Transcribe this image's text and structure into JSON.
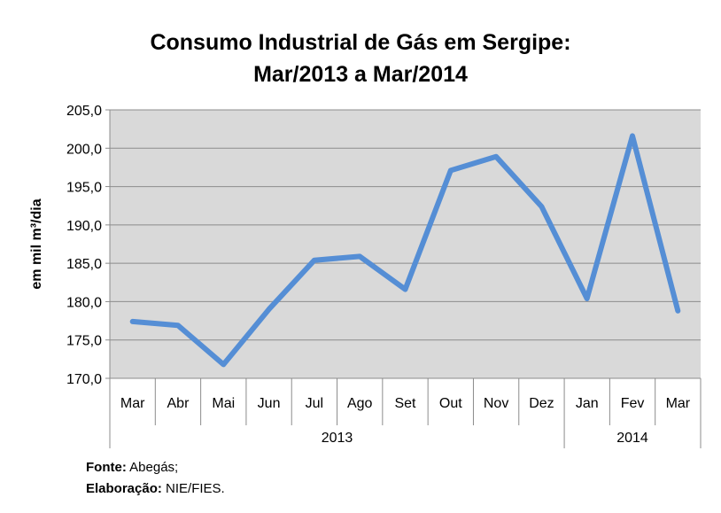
{
  "title_line1": "Consumo Industrial de Gás em Sergipe:",
  "title_line2": "Mar/2013 a Mar/2014",
  "chart_data": {
    "type": "line",
    "title": "Consumo Industrial de Gás em Sergipe: Mar/2013 a Mar/2014",
    "ylabel": "em mil m³/dia",
    "xlabel": "",
    "categories": [
      "Mar",
      "Abr",
      "Mai",
      "Jun",
      "Jul",
      "Ago",
      "Set",
      "Out",
      "Nov",
      "Dez",
      "Jan",
      "Fev",
      "Mar"
    ],
    "category_groups": [
      {
        "label": "2013",
        "count": 10
      },
      {
        "label": "2014",
        "count": 3
      }
    ],
    "series": [
      {
        "values": [
          177.4,
          176.9,
          171.8,
          179.0,
          185.4,
          185.9,
          181.6,
          197.1,
          198.9,
          192.4,
          180.4,
          201.6,
          178.8
        ],
        "color": "#558ED5"
      }
    ],
    "ylim": [
      170.0,
      205.0
    ],
    "yticks": [
      "170,0",
      "175,0",
      "180,0",
      "185,0",
      "190,0",
      "195,0",
      "200,0",
      "205,0"
    ],
    "grid": true,
    "legend": "none",
    "plot_background": "#D9D9D9"
  },
  "footer": {
    "source_label": "Fonte:",
    "source_value": " Abegás;",
    "credit_label": "Elaboração:",
    "credit_value": " NIE/FIES."
  }
}
